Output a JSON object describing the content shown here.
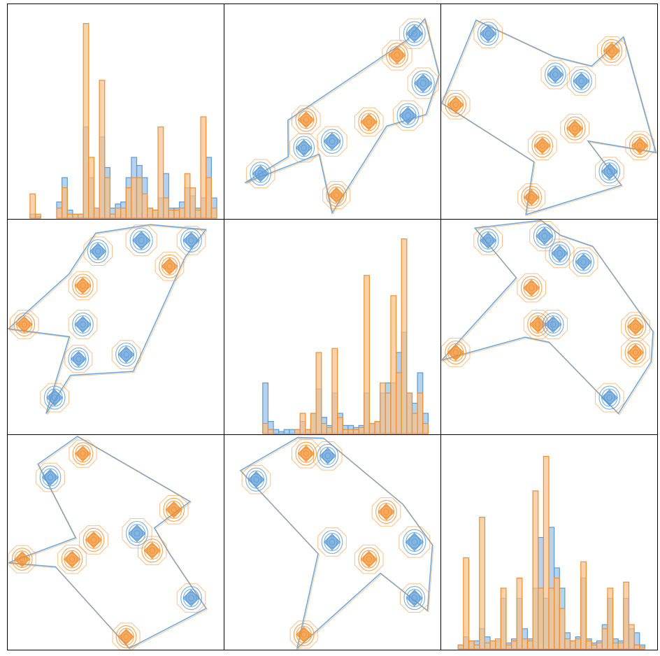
{
  "colors": {
    "series_a": "#5b9bd5",
    "series_a_fill": "#9dc3e6",
    "series_b": "#f28e2b",
    "series_b_fill": "#f8c08c",
    "frame": "#000000"
  },
  "chart_data": {
    "type": "pair-grid",
    "rows": 3,
    "cols": 3,
    "grid": false,
    "legend": "none",
    "axes_labels_shown": false,
    "series": [
      {
        "key": "a",
        "color": "#5b9bd5"
      },
      {
        "key": "b",
        "color": "#f28e2b"
      }
    ],
    "diagonal_histograms": [
      {
        "bins": 38,
        "series_a": [
          0,
          0,
          0,
          0.02,
          0.01,
          0,
          0,
          0,
          0.08,
          0.2,
          0.04,
          0.02,
          0.02,
          0.45,
          0.2,
          0.05,
          0.4,
          0.25,
          0.05,
          0.07,
          0.08,
          0.2,
          0.3,
          0.26,
          0.2,
          0.05,
          0.04,
          0.1,
          0.22,
          0.05,
          0.05,
          0.08,
          0.15,
          0.11,
          0.05,
          0.1,
          0.3,
          0.1
        ],
        "series_b": [
          0,
          0,
          0,
          0.12,
          0.02,
          0,
          0,
          0,
          0.05,
          0.15,
          0.02,
          0.02,
          0.02,
          0.96,
          0.3,
          0.05,
          0.68,
          0.2,
          0.02,
          0.05,
          0.05,
          0.15,
          0.2,
          0.2,
          0.12,
          0.05,
          0.04,
          0.45,
          0.1,
          0.04,
          0.04,
          0.05,
          0.22,
          0.15,
          0.04,
          0.5,
          0.2,
          0.05
        ]
      },
      {
        "bins": 38,
        "series_a": [
          0,
          0,
          0,
          0,
          0,
          0,
          0.25,
          0.06,
          0.02,
          0.01,
          0.02,
          0.02,
          0.02,
          0.06,
          0.02,
          0.1,
          0.22,
          0.08,
          0.04,
          0.2,
          0.1,
          0.04,
          0.04,
          0.03,
          0.04,
          0.2,
          0.05,
          0.06,
          0.2,
          0.25,
          0.25,
          0.4,
          0.5,
          0.2,
          0.15,
          0.3,
          0.1,
          0
        ],
        "series_b": [
          0,
          0,
          0,
          0,
          0,
          0,
          0.05,
          0.02,
          0,
          0,
          0,
          0,
          0.02,
          0.1,
          0.02,
          0.1,
          0.4,
          0.05,
          0.03,
          0.42,
          0.08,
          0.02,
          0.02,
          0.02,
          0.03,
          0.78,
          0.05,
          0.06,
          0.25,
          0.2,
          0.68,
          0.3,
          0.96,
          0.2,
          0.1,
          0.2,
          0.05,
          0
        ]
      },
      {
        "bins": 38,
        "series_a": [
          0,
          0,
          0.02,
          0.06,
          0.04,
          0.04,
          0.1,
          0.06,
          0.04,
          0.04,
          0.25,
          0.03,
          0.05,
          0.25,
          0.1,
          0.05,
          0.3,
          0.55,
          0.25,
          0.6,
          0.4,
          0.3,
          0.08,
          0.04,
          0.06,
          0.35,
          0.05,
          0.03,
          0.04,
          0.12,
          0.25,
          0.05,
          0.04,
          0.25,
          0.1,
          0.08,
          0.02,
          0
        ],
        "series_b": [
          0,
          0,
          0.02,
          0.45,
          0.04,
          0.02,
          0.65,
          0.03,
          0.04,
          0.05,
          0.3,
          0.02,
          0.04,
          0.35,
          0.05,
          0.04,
          0.78,
          0.3,
          0.95,
          0.3,
          0.35,
          0.2,
          0.05,
          0.04,
          0.05,
          0.43,
          0.04,
          0.02,
          0.03,
          0.1,
          0.3,
          0.03,
          0.03,
          0.33,
          0.12,
          0.02,
          0.01,
          0
        ]
      }
    ],
    "offdiagonal_contours": [
      {
        "row": 0,
        "col": 1,
        "clusters": [
          [
            0.17,
            0.79,
            0.5,
            "a"
          ],
          [
            0.37,
            0.67,
            0.5,
            "a"
          ],
          [
            0.5,
            0.64,
            0.6,
            "a"
          ],
          [
            0.38,
            0.54,
            0.5,
            "b"
          ],
          [
            0.67,
            0.55,
            0.5,
            "b"
          ],
          [
            0.85,
            0.52,
            0.6,
            "a"
          ],
          [
            0.92,
            0.37,
            0.7,
            "a"
          ],
          [
            0.8,
            0.24,
            0.6,
            "b"
          ],
          [
            0.88,
            0.14,
            0.6,
            "a"
          ],
          [
            0.52,
            0.89,
            0.4,
            "b"
          ]
        ]
      },
      {
        "row": 0,
        "col": 2,
        "clusters": [
          [
            0.22,
            0.14,
            0.5,
            "a"
          ],
          [
            0.65,
            0.36,
            0.5,
            "a"
          ],
          [
            0.53,
            0.33,
            0.5,
            "a"
          ],
          [
            0.47,
            0.66,
            0.5,
            "b"
          ],
          [
            0.62,
            0.58,
            0.5,
            "b"
          ],
          [
            0.79,
            0.22,
            0.5,
            "b"
          ],
          [
            0.07,
            0.47,
            0.5,
            "b"
          ],
          [
            0.92,
            0.66,
            0.5,
            "b"
          ],
          [
            0.78,
            0.78,
            0.5,
            "a"
          ],
          [
            0.42,
            0.9,
            0.4,
            "b"
          ]
        ]
      },
      {
        "row": 1,
        "col": 0,
        "clusters": [
          [
            0.42,
            0.15,
            0.5,
            "a"
          ],
          [
            0.62,
            0.1,
            0.7,
            "a"
          ],
          [
            0.85,
            0.1,
            0.5,
            "a"
          ],
          [
            0.75,
            0.22,
            0.5,
            "b"
          ],
          [
            0.35,
            0.31,
            0.5,
            "b"
          ],
          [
            0.08,
            0.49,
            0.5,
            "b"
          ],
          [
            0.35,
            0.49,
            0.5,
            "a"
          ],
          [
            0.33,
            0.65,
            0.4,
            "a"
          ],
          [
            0.55,
            0.63,
            0.5,
            "a"
          ],
          [
            0.22,
            0.83,
            0.5,
            "a"
          ]
        ]
      },
      {
        "row": 1,
        "col": 2,
        "clusters": [
          [
            0.22,
            0.1,
            0.5,
            "a"
          ],
          [
            0.48,
            0.08,
            0.6,
            "a"
          ],
          [
            0.55,
            0.16,
            0.5,
            "a"
          ],
          [
            0.66,
            0.2,
            0.5,
            "a"
          ],
          [
            0.42,
            0.32,
            0.5,
            "b"
          ],
          [
            0.45,
            0.49,
            0.5,
            "b"
          ],
          [
            0.52,
            0.49,
            0.5,
            "a"
          ],
          [
            0.07,
            0.62,
            0.5,
            "b"
          ],
          [
            0.9,
            0.5,
            0.5,
            "b"
          ],
          [
            0.9,
            0.62,
            0.5,
            "b"
          ],
          [
            0.78,
            0.83,
            0.5,
            "a"
          ]
        ]
      },
      {
        "row": 2,
        "col": 0,
        "clusters": [
          [
            0.35,
            0.09,
            0.4,
            "b"
          ],
          [
            0.2,
            0.2,
            0.5,
            "a"
          ],
          [
            0.4,
            0.49,
            0.5,
            "b"
          ],
          [
            0.3,
            0.58,
            0.5,
            "b"
          ],
          [
            0.6,
            0.46,
            0.6,
            "a"
          ],
          [
            0.67,
            0.54,
            0.5,
            "b"
          ],
          [
            0.77,
            0.35,
            0.5,
            "b"
          ],
          [
            0.85,
            0.76,
            0.5,
            "a"
          ],
          [
            0.07,
            0.58,
            0.4,
            "b"
          ],
          [
            0.55,
            0.94,
            0.4,
            "b"
          ]
        ]
      },
      {
        "row": 2,
        "col": 1,
        "clusters": [
          [
            0.15,
            0.21,
            0.5,
            "a"
          ],
          [
            0.38,
            0.09,
            0.5,
            "b"
          ],
          [
            0.48,
            0.1,
            0.5,
            "a"
          ],
          [
            0.75,
            0.36,
            0.5,
            "b"
          ],
          [
            0.88,
            0.5,
            0.7,
            "a"
          ],
          [
            0.5,
            0.5,
            0.5,
            "a"
          ],
          [
            0.67,
            0.58,
            0.5,
            "b"
          ],
          [
            0.88,
            0.76,
            0.5,
            "a"
          ],
          [
            0.37,
            0.93,
            0.4,
            "b"
          ]
        ]
      }
    ]
  }
}
